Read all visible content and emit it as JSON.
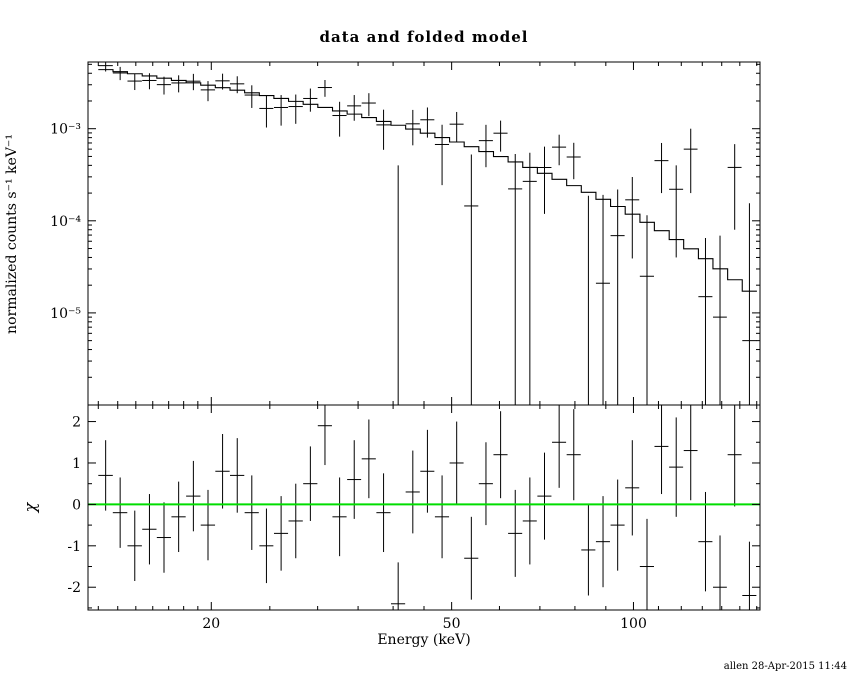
{
  "title": "data and folded model",
  "signature": "allen 28-Apr-2015 11:44",
  "colors": {
    "fg": "#000000",
    "bg": "#ffffff",
    "zero_line": "#00dd00"
  },
  "chart_data": [
    {
      "type": "scatter",
      "panel": "data",
      "title": "data and folded model",
      "xlabel": "Energy (keV)",
      "ylabel": "normalized counts s⁻¹ keV⁻¹",
      "xscale": "log",
      "yscale": "log",
      "xlim": [
        12.5,
        162
      ],
      "ylim": [
        1e-06,
        0.0053
      ],
      "grid": false,
      "xticks": {
        "major": [
          20,
          50,
          100
        ],
        "minor": [
          13,
          14,
          15,
          16,
          17,
          18,
          19,
          25,
          30,
          35,
          40,
          45,
          60,
          70,
          80,
          90,
          110,
          120,
          130,
          140,
          150,
          160
        ]
      },
      "yticks": {
        "major": [
          0.001,
          0.0001,
          1e-05
        ],
        "labels": [
          "10⁻³",
          "10⁻⁴",
          "10⁻⁵"
        ]
      },
      "model": {
        "edges": [
          13.0,
          13.75,
          14.53,
          15.37,
          16.25,
          17.18,
          18.17,
          19.21,
          20.31,
          21.48,
          22.71,
          24.02,
          25.39,
          26.85,
          28.39,
          30.02,
          31.75,
          33.57,
          35.49,
          37.53,
          39.68,
          41.96,
          44.37,
          46.91,
          49.61,
          52.45,
          55.46,
          58.65,
          62.01,
          65.57,
          69.33,
          73.31,
          77.52,
          81.97,
          86.67,
          91.64,
          96.9,
          102.5,
          108.3,
          114.6,
          121.1,
          128.1,
          135.4,
          143.2,
          151.4,
          160.1
        ],
        "values": [
          0.00438,
          0.00416,
          0.00395,
          0.00374,
          0.00354,
          0.00334,
          0.00315,
          0.00297,
          0.00279,
          0.00262,
          0.00245,
          0.00229,
          0.00213,
          0.00198,
          0.00184,
          0.0017,
          0.00156,
          0.00144,
          0.00132,
          0.0012,
          0.00109,
          0.00099,
          0.000893,
          0.000802,
          0.000717,
          0.000638,
          0.000565,
          0.000498,
          0.000436,
          0.00038,
          0.000328,
          0.000282,
          0.000241,
          0.000204,
          0.000171,
          0.000143,
          0.000118,
          9.62e-05,
          7.81e-05,
          6.26e-05,
          4.97e-05,
          3.88e-05,
          3.01e-05,
          2.29e-05,
          1.72e-05
        ]
      },
      "points_format": [
        "energy_keV",
        "energy_halfwidth_keV",
        "value",
        "error"
      ],
      "points": [
        [
          13.37,
          0.37,
          0.00484,
          0.00066
        ],
        [
          14.13,
          0.39,
          0.00403,
          0.00066
        ],
        [
          14.94,
          0.41,
          0.00329,
          0.00066
        ],
        [
          15.8,
          0.43,
          0.00334,
          0.00066
        ],
        [
          16.7,
          0.45,
          0.00301,
          0.00066
        ],
        [
          17.66,
          0.48,
          0.00314,
          0.00066
        ],
        [
          18.68,
          0.51,
          0.00328,
          0.00066
        ],
        [
          19.75,
          0.54,
          0.00264,
          0.00065
        ],
        [
          20.88,
          0.57,
          0.00331,
          0.00065
        ],
        [
          22.08,
          0.6,
          0.00307,
          0.00064
        ],
        [
          23.34,
          0.63,
          0.00232,
          0.00064
        ],
        [
          24.68,
          0.66,
          0.00166,
          0.00063
        ],
        [
          26.1,
          0.7,
          0.0017,
          0.00062
        ],
        [
          27.6,
          0.75,
          0.00174,
          0.00061
        ],
        [
          29.18,
          0.79,
          0.00213,
          0.0006
        ],
        [
          30.85,
          0.83,
          0.0028,
          0.00058
        ],
        [
          32.62,
          0.88,
          0.00139,
          0.00057
        ],
        [
          34.49,
          0.92,
          0.00177,
          0.00055
        ],
        [
          36.47,
          0.98,
          0.0019,
          0.00053
        ],
        [
          38.57,
          1.04,
          0.0011,
          0.00051
        ],
        [
          40.78,
          1.1,
          -9e-05,
          0.00049
        ],
        [
          43.12,
          1.16,
          0.00113,
          0.00047
        ],
        [
          45.59,
          1.22,
          0.00125,
          0.00045
        ],
        [
          48.21,
          1.3,
          0.000674,
          0.00043
        ],
        [
          50.97,
          1.36,
          0.00112,
          0.0004
        ],
        [
          53.9,
          1.45,
          0.000145,
          0.00038
        ],
        [
          56.99,
          1.53,
          0.000742,
          0.00036
        ],
        [
          60.26,
          1.62,
          0.000894,
          0.00033
        ],
        [
          63.72,
          1.71,
          0.000222,
          0.00031
        ],
        [
          67.37,
          1.8,
          0.000268,
          0.00028
        ],
        [
          71.24,
          1.91,
          0.000379,
          0.00026
        ],
        [
          75.33,
          2.02,
          0.000631,
          0.00023
        ],
        [
          79.65,
          2.13,
          0.000493,
          0.00021
        ],
        [
          84.22,
          2.26,
          -3e-06,
          0.00019
        ],
        [
          89.05,
          2.38,
          2.1e-05,
          0.00017
        ],
        [
          94.16,
          2.52,
          6.9e-05,
          0.00015
        ],
        [
          99.56,
          2.66,
          0.000169,
          0.00013
        ],
        [
          105.3,
          2.84,
          2.5e-05,
          9e-05
        ],
        [
          111.3,
          2.96,
          0.00045,
          0.00025
        ],
        [
          117.7,
          3.14,
          0.00022,
          0.00018
        ],
        [
          124.4,
          3.27,
          0.0006,
          0.0004
        ],
        [
          131.6,
          3.52,
          1.5e-05,
          5e-05
        ],
        [
          139.1,
          3.67,
          9e-06,
          6e-05
        ],
        [
          147.1,
          3.9,
          0.00038,
          0.0003
        ],
        [
          155.6,
          4.18,
          5e-06,
          0.00015
        ]
      ]
    },
    {
      "type": "scatter",
      "panel": "residuals",
      "xlabel": "Energy (keV)",
      "ylabel": "χ",
      "xscale": "log",
      "yscale": "linear",
      "xlim": [
        12.5,
        162
      ],
      "ylim": [
        -2.55,
        2.4
      ],
      "grid": false,
      "xticks": {
        "major": [
          20,
          50,
          100
        ],
        "labels": [
          "20",
          "50",
          "100"
        ]
      },
      "yticks": {
        "major": [
          -2,
          -1,
          0,
          1,
          2
        ],
        "minor": [
          -2.5,
          -1.5,
          -0.5,
          0.5,
          1.5
        ],
        "labels": [
          "-2",
          "-1",
          "0",
          "1",
          "2"
        ]
      },
      "zero_line": {
        "y": 0,
        "color": "#00dd00"
      },
      "points_format": [
        "energy_keV",
        "energy_halfwidth_keV",
        "chi",
        "chi_error"
      ],
      "points": [
        [
          13.37,
          0.37,
          0.7,
          0.85
        ],
        [
          14.13,
          0.39,
          -0.2,
          0.85
        ],
        [
          14.94,
          0.41,
          -1.0,
          0.85
        ],
        [
          15.8,
          0.43,
          -0.6,
          0.85
        ],
        [
          16.7,
          0.45,
          -0.8,
          0.85
        ],
        [
          17.66,
          0.48,
          -0.3,
          0.85
        ],
        [
          18.68,
          0.51,
          0.2,
          0.85
        ],
        [
          19.75,
          0.54,
          -0.5,
          0.85
        ],
        [
          20.88,
          0.57,
          0.8,
          0.9
        ],
        [
          22.08,
          0.6,
          0.7,
          0.9
        ],
        [
          23.34,
          0.63,
          -0.2,
          0.9
        ],
        [
          24.68,
          0.66,
          -1.0,
          0.9
        ],
        [
          26.1,
          0.7,
          -0.7,
          0.9
        ],
        [
          27.6,
          0.75,
          -0.4,
          0.9
        ],
        [
          29.18,
          0.79,
          0.5,
          0.9
        ],
        [
          30.85,
          0.83,
          1.9,
          0.95
        ],
        [
          32.62,
          0.88,
          -0.3,
          0.95
        ],
        [
          34.49,
          0.92,
          0.6,
          0.95
        ],
        [
          36.47,
          0.98,
          1.1,
          0.95
        ],
        [
          38.57,
          1.04,
          -0.2,
          0.95
        ],
        [
          40.78,
          1.1,
          -2.4,
          1.0
        ],
        [
          43.12,
          1.16,
          0.3,
          1.0
        ],
        [
          45.59,
          1.22,
          0.8,
          1.0
        ],
        [
          48.21,
          1.3,
          -0.3,
          1.0
        ],
        [
          50.97,
          1.36,
          1.0,
          1.0
        ],
        [
          53.9,
          1.45,
          -1.3,
          1.0
        ],
        [
          56.99,
          1.53,
          0.5,
          1.0
        ],
        [
          60.26,
          1.62,
          1.2,
          1.05
        ],
        [
          63.72,
          1.71,
          -0.7,
          1.05
        ],
        [
          67.37,
          1.8,
          -0.4,
          1.05
        ],
        [
          71.24,
          1.91,
          0.2,
          1.05
        ],
        [
          75.33,
          2.02,
          1.5,
          1.1
        ],
        [
          79.65,
          2.13,
          1.2,
          1.1
        ],
        [
          84.22,
          2.26,
          -1.1,
          1.1
        ],
        [
          89.05,
          2.38,
          -0.9,
          1.1
        ],
        [
          94.16,
          2.52,
          -0.5,
          1.1
        ],
        [
          99.56,
          2.66,
          0.4,
          1.15
        ],
        [
          105.3,
          2.84,
          -1.5,
          1.15
        ],
        [
          111.3,
          2.96,
          1.4,
          1.15
        ],
        [
          117.7,
          3.14,
          0.9,
          1.2
        ],
        [
          124.4,
          3.27,
          1.3,
          1.2
        ],
        [
          131.6,
          3.52,
          -0.9,
          1.2
        ],
        [
          139.1,
          3.67,
          -2.0,
          1.25
        ],
        [
          147.1,
          3.9,
          1.2,
          1.25
        ],
        [
          155.6,
          4.18,
          -2.2,
          1.3
        ]
      ]
    }
  ]
}
